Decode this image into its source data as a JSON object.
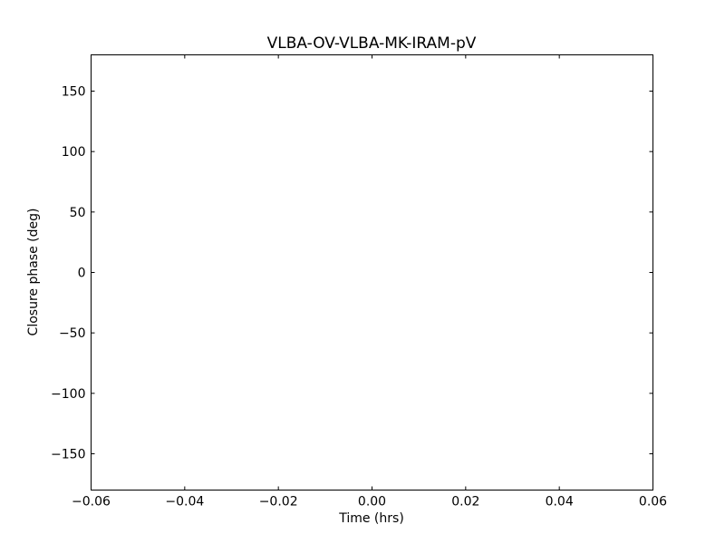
{
  "chart_data": {
    "type": "scatter",
    "title": "VLBA-OV-VLBA-MK-IRAM-pV",
    "xlabel": "Time (hrs)",
    "ylabel": "Closure phase (deg)",
    "xlim": [
      -0.06,
      0.06
    ],
    "ylim": [
      -180,
      180
    ],
    "xticks": [
      -0.06,
      -0.04,
      -0.02,
      0.0,
      0.02,
      0.04,
      0.06
    ],
    "xtick_labels": [
      "−0.06",
      "−0.04",
      "−0.02",
      "0.00",
      "0.02",
      "0.04",
      "0.06"
    ],
    "yticks": [
      -150,
      -100,
      -50,
      0,
      50,
      100,
      150
    ],
    "ytick_labels": [
      "−150",
      "−100",
      "−50",
      "0",
      "50",
      "100",
      "150"
    ],
    "grid": false,
    "series": []
  }
}
